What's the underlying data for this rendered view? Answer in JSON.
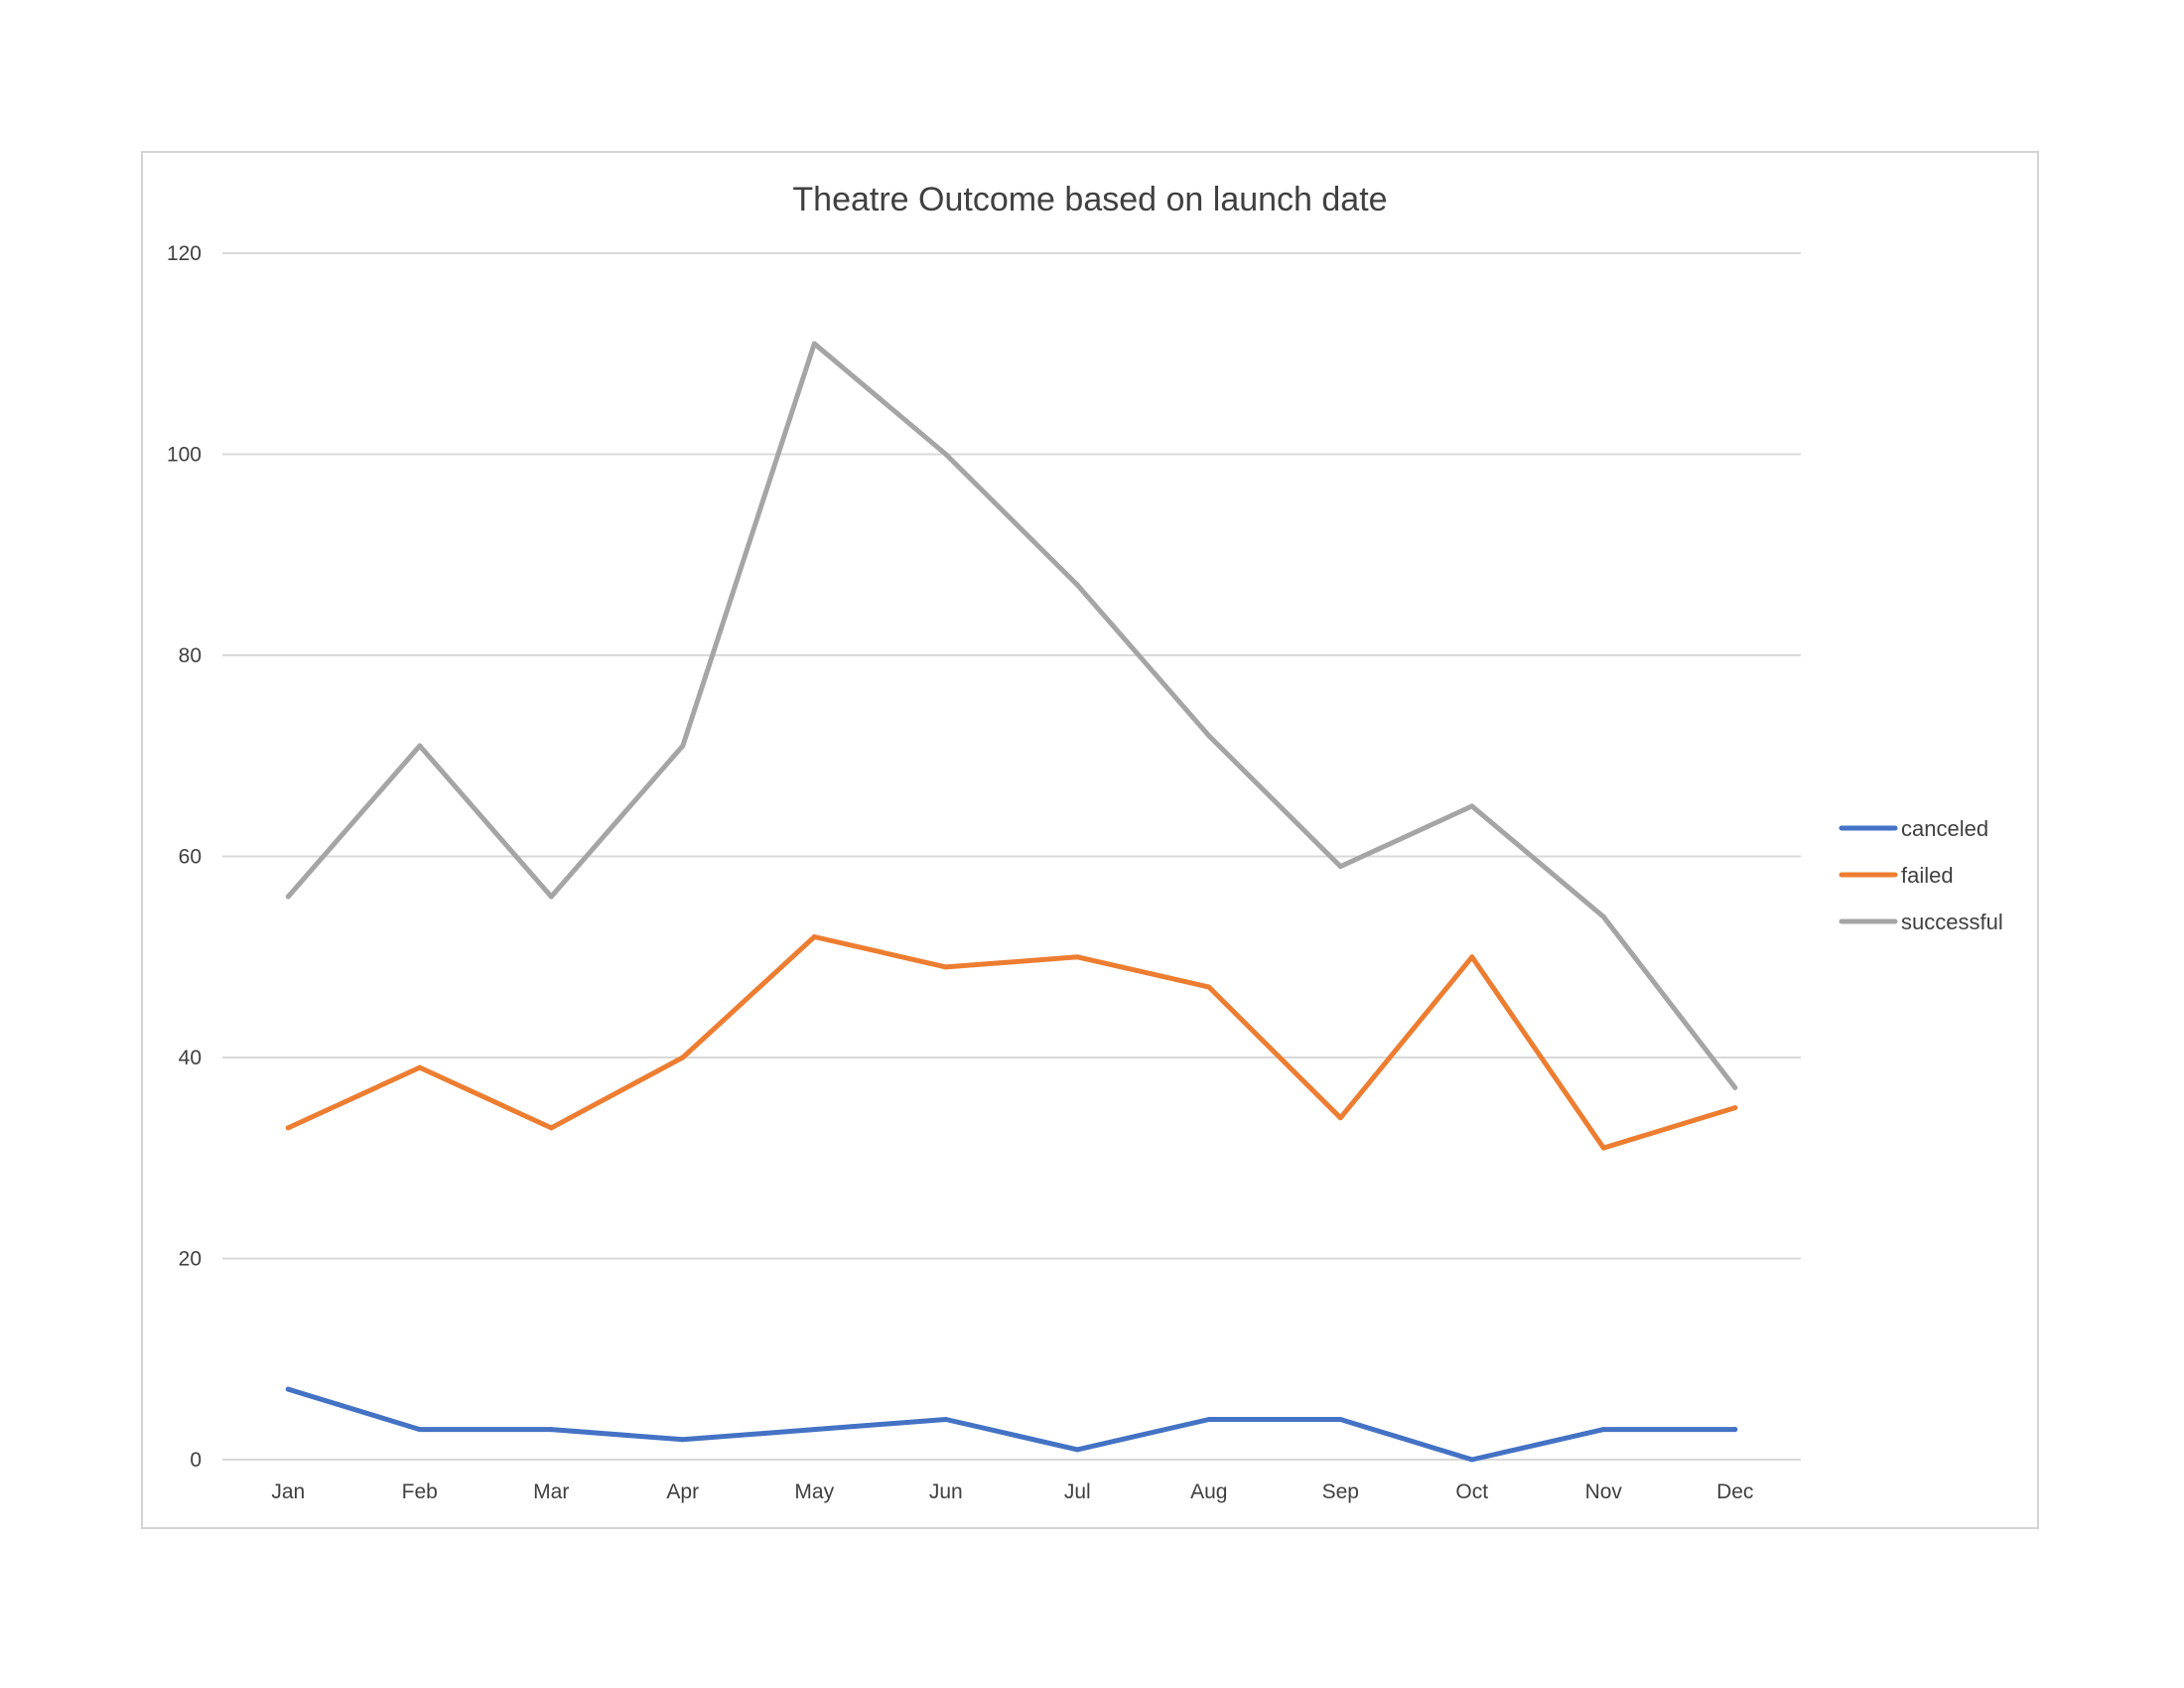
{
  "chart_data": {
    "type": "line",
    "title": "Theatre Outcome based on launch date",
    "xlabel": "",
    "ylabel": "",
    "categories": [
      "Jan",
      "Feb",
      "Mar",
      "Apr",
      "May",
      "Jun",
      "Jul",
      "Aug",
      "Sep",
      "Oct",
      "Nov",
      "Dec"
    ],
    "ylim": [
      0,
      120
    ],
    "yticks": [
      0,
      20,
      40,
      60,
      80,
      100,
      120
    ],
    "grid": true,
    "legend_position": "right",
    "series": [
      {
        "name": "canceled",
        "color": "#4472C4",
        "values": [
          7,
          3,
          3,
          2,
          3,
          4,
          1,
          4,
          4,
          0,
          3,
          3
        ]
      },
      {
        "name": "failed",
        "color": "#ED7D31",
        "values": [
          33,
          39,
          33,
          40,
          52,
          49,
          50,
          47,
          34,
          50,
          31,
          35
        ]
      },
      {
        "name": "successful",
        "color": "#A5A5A5",
        "values": [
          56,
          71,
          56,
          71,
          111,
          100,
          87,
          72,
          59,
          65,
          54,
          37
        ]
      }
    ]
  }
}
